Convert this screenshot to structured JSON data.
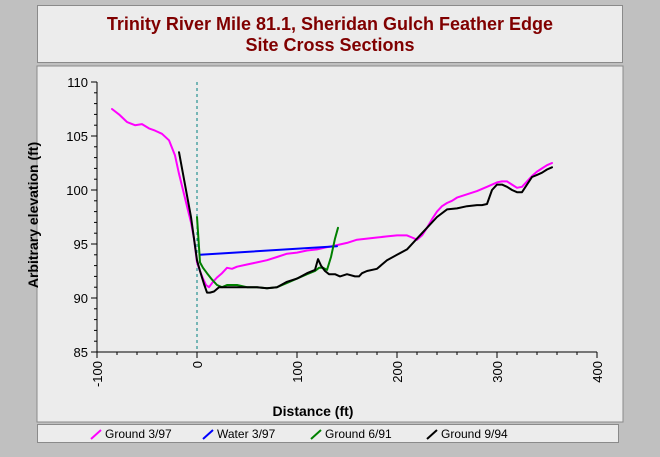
{
  "chart_data": {
    "type": "line",
    "title_lines": [
      "Trinity River Mile 81.1, Sheridan Gulch Feather Edge",
      "Site Cross Sections"
    ],
    "xlabel": "Distance (ft)",
    "ylabel": "Arbitrary elevation (ft)",
    "xlim": [
      -100,
      400
    ],
    "ylim": [
      85,
      110
    ],
    "xticks": [
      -100,
      0,
      100,
      200,
      300,
      400
    ],
    "yticks": [
      85,
      90,
      95,
      100,
      105,
      110
    ],
    "legend_position": "bottom",
    "reference_line_x": 0,
    "series": [
      {
        "name": "Ground 3/97",
        "color": "#ff00ff",
        "x": [
          -85,
          -78,
          -70,
          -62,
          -55,
          -48,
          -42,
          -35,
          -28,
          -22,
          -18,
          -14,
          -10,
          -6,
          -3,
          0,
          3,
          6,
          9,
          12,
          16,
          20,
          25,
          30,
          35,
          40,
          50,
          60,
          70,
          80,
          90,
          100,
          110,
          120,
          130,
          140,
          150,
          160,
          170,
          180,
          190,
          200,
          210,
          215,
          220,
          225,
          230,
          235,
          240,
          245,
          250,
          255,
          260,
          270,
          280,
          290,
          300,
          305,
          310,
          315,
          320,
          325,
          330,
          335,
          340,
          345,
          350,
          355
        ],
        "y": [
          107.5,
          107.0,
          106.3,
          106.0,
          106.1,
          105.7,
          105.5,
          105.2,
          104.6,
          103.2,
          101.5,
          100.0,
          98.5,
          97.0,
          95.5,
          93.3,
          92.5,
          91.8,
          91.2,
          91.0,
          91.5,
          91.9,
          92.3,
          92.8,
          92.7,
          92.9,
          93.1,
          93.3,
          93.5,
          93.8,
          94.1,
          94.2,
          94.4,
          94.5,
          94.7,
          94.9,
          95.1,
          95.4,
          95.5,
          95.6,
          95.7,
          95.8,
          95.8,
          95.6,
          95.4,
          95.8,
          96.5,
          97.3,
          98.0,
          98.5,
          98.8,
          99.0,
          99.3,
          99.6,
          99.9,
          100.3,
          100.7,
          100.8,
          100.8,
          100.5,
          100.2,
          100.3,
          100.8,
          101.3,
          101.7,
          102.0,
          102.3,
          102.5
        ]
      },
      {
        "name": "Water 3/97",
        "color": "#0000ff",
        "x": [
          3,
          140
        ],
        "y": [
          94.0,
          94.8
        ]
      },
      {
        "name": "Ground 6/91",
        "color": "#008000",
        "x": [
          0,
          3,
          6,
          10,
          15,
          20,
          25,
          30,
          40,
          50,
          60,
          70,
          80,
          90,
          100,
          110,
          118,
          122,
          126,
          130,
          134,
          138,
          141
        ],
        "y": [
          97.5,
          93.3,
          92.8,
          92.3,
          91.7,
          91.2,
          91.0,
          91.2,
          91.2,
          91.0,
          91.0,
          90.9,
          91.0,
          91.4,
          91.8,
          92.2,
          92.5,
          92.8,
          92.8,
          92.6,
          93.8,
          95.5,
          96.5
        ]
      },
      {
        "name": "Ground 9/94",
        "color": "#000000",
        "x": [
          -18,
          -14,
          -10,
          -6,
          -3,
          0,
          3,
          7,
          10,
          13,
          17,
          22,
          30,
          40,
          50,
          60,
          70,
          80,
          90,
          100,
          110,
          118,
          121,
          124,
          128,
          132,
          138,
          143,
          150,
          158,
          162,
          165,
          170,
          180,
          190,
          200,
          210,
          220,
          230,
          240,
          250,
          260,
          270,
          280,
          285,
          290,
          295,
          300,
          305,
          310,
          315,
          320,
          325,
          330,
          335,
          340,
          345,
          350,
          355
        ],
        "y": [
          103.5,
          101.5,
          99.5,
          97.5,
          95.5,
          93.5,
          92.5,
          91.3,
          90.5,
          90.5,
          90.6,
          91.0,
          91.0,
          91.0,
          91.0,
          91.0,
          90.9,
          91.0,
          91.5,
          91.8,
          92.3,
          92.6,
          93.6,
          93.0,
          92.5,
          92.2,
          92.2,
          92.0,
          92.2,
          92.0,
          92.0,
          92.3,
          92.5,
          92.7,
          93.5,
          94.0,
          94.5,
          95.5,
          96.5,
          97.5,
          98.2,
          98.3,
          98.5,
          98.6,
          98.6,
          98.7,
          100.0,
          100.5,
          100.5,
          100.3,
          100.0,
          99.8,
          99.8,
          100.5,
          101.2,
          101.4,
          101.6,
          101.9,
          102.1
        ]
      }
    ]
  }
}
